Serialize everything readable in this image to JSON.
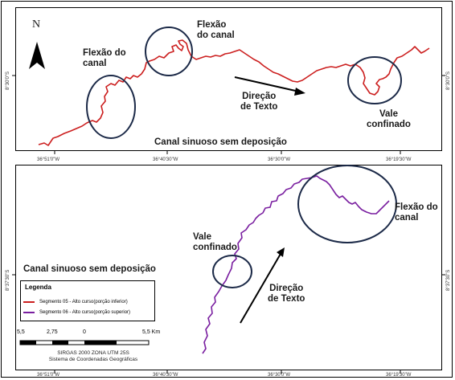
{
  "colors": {
    "segment05": "#cc1f1f",
    "segment06": "#7a1fa0",
    "ellipse": "#1c2a48",
    "arrow": "#000000"
  },
  "north_arrow": {
    "letter": "N"
  },
  "top_panel": {
    "labels": {
      "bend_left": "Flexão do\ncanal",
      "bend_middle": "Flexão\ndo canal",
      "direction": "Direção\nde Texto",
      "confined_valley": "Vale\nconfinado",
      "caption": "Canal sinuoso sem deposição"
    },
    "lat_label": "8°30'0\"S",
    "lon_ticks": [
      "36°51'0\"W",
      "36°40'30\"W",
      "36°30'0\"W",
      "36°19'30\"W"
    ]
  },
  "bottom_panel": {
    "labels": {
      "caption": "Canal sinuoso sem deposição",
      "bend": "Flexão do\ncanal",
      "confined_valley": "Vale\nconfinado",
      "direction": "Direção\nde Texto"
    },
    "lat_label": "8°37'30\"S",
    "lon_ticks": [
      "36°51'0\"W",
      "36°40'30\"W",
      "36°30'0\"W",
      "36°19'30\"W"
    ]
  },
  "legend": {
    "title": "Legenda",
    "items": [
      {
        "label": "Segmento 05 - Alto curso(porção inferior)"
      },
      {
        "label": "Segmento 06 - Alto curso(porção superior)"
      }
    ]
  },
  "scale": {
    "labels": [
      "5,5",
      "2,75",
      "0",
      "5,5 Km"
    ],
    "datum": "SIRGAS 2000 ZONA UTM 25S",
    "system": "Sistema de Coordenadas Geográficas"
  }
}
